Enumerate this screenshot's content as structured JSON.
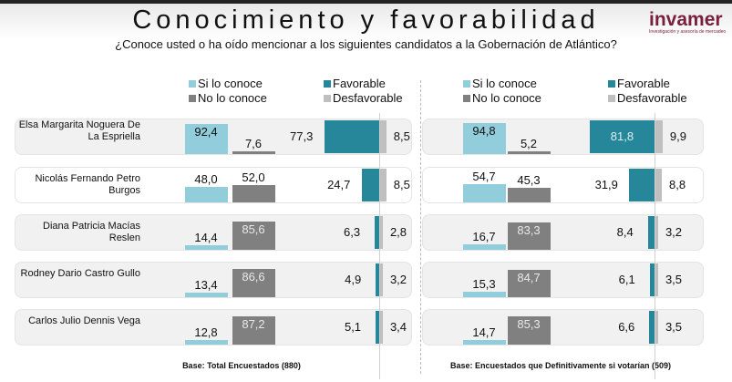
{
  "header": {
    "title": "Conocimiento y favorabilidad",
    "subtitle": "¿Conoce usted o ha oído mencionar a los siguientes candidatos a la Gobernación de Atlántico?",
    "logo": "invamer",
    "logo_tagline": "Investigación y asesoría de mercadeo"
  },
  "legend": {
    "si": "Si lo conoce",
    "no": "No lo conoce",
    "fav": "Favorable",
    "desfav": "Desfavorable"
  },
  "colors": {
    "si": "#92cddb",
    "no": "#808080",
    "fav": "#26869a",
    "desfav": "#bfbfbf"
  },
  "candidates": [
    "Elsa Margarita Noguera De La Espriella",
    "Nicolás Fernando Petro Burgos",
    "Diana Patricia Macías Reslen",
    "Rodney Dario Castro Gullo",
    "Carlos Julio Dennis Vega"
  ],
  "chart_data": [
    {
      "type": "bar",
      "base": "Base: Total Encuestados (880)",
      "series": [
        {
          "name": "Si lo conoce",
          "values": [
            "92,4",
            "48,0",
            "14,4",
            "13,4",
            "12,8"
          ]
        },
        {
          "name": "No lo conoce",
          "values": [
            "7,6",
            "52,0",
            "85,6",
            "86,6",
            "87,2"
          ]
        },
        {
          "name": "Favorable",
          "values": [
            "77,3",
            "24,7",
            "6,3",
            "4,9",
            "5,1"
          ]
        },
        {
          "name": "Desfavorable",
          "values": [
            "8,5",
            "8,5",
            "2,8",
            "3,2",
            "3,4"
          ]
        }
      ]
    },
    {
      "type": "bar",
      "base": "Base: Encuestados que Definitivamente si votarían (509)",
      "series": [
        {
          "name": "Si lo conoce",
          "values": [
            "94,8",
            "54,7",
            "16,7",
            "15,3",
            "14,7"
          ]
        },
        {
          "name": "No lo conoce",
          "values": [
            "5,2",
            "45,3",
            "83,3",
            "84,7",
            "85,3"
          ]
        },
        {
          "name": "Favorable",
          "values": [
            "81,8",
            "31,9",
            "8,4",
            "6,1",
            "6,6"
          ]
        },
        {
          "name": "Desfavorable",
          "values": [
            "9,9",
            "8,8",
            "3,2",
            "3,5",
            "3,5"
          ]
        }
      ]
    }
  ]
}
